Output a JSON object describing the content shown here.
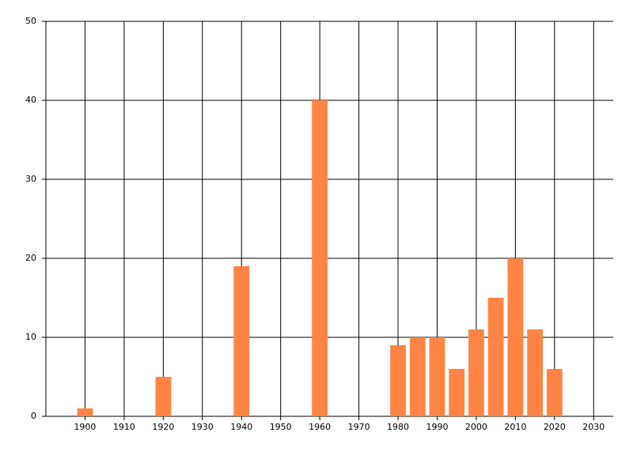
{
  "chart_data": {
    "type": "bar",
    "x": [
      1900,
      1920,
      1940,
      1960,
      1980,
      1985,
      1990,
      1995,
      2000,
      2005,
      2010,
      2015,
      2020
    ],
    "values": [
      1,
      5,
      19,
      40,
      9,
      10,
      10,
      6,
      11,
      15,
      20,
      11,
      6
    ],
    "color": "#ff8443",
    "xlim": [
      1890,
      2035
    ],
    "xticks": [
      1900,
      1910,
      1920,
      1930,
      1940,
      1950,
      1960,
      1970,
      1980,
      1990,
      2000,
      2010,
      2020,
      2030
    ],
    "ylim": [
      0,
      50
    ],
    "yticks": [
      0,
      10,
      20,
      30,
      40,
      50
    ],
    "grid": true
  }
}
